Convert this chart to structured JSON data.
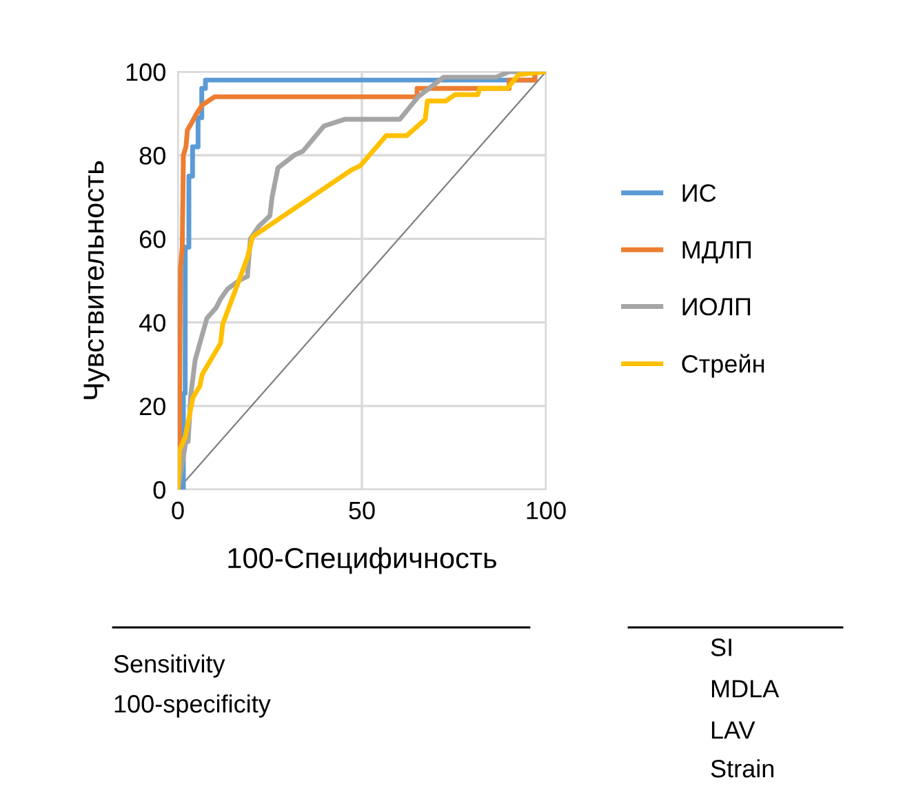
{
  "chart_data": {
    "type": "line",
    "xlabel": "100-Специфичность",
    "ylabel": "Чувствительность",
    "xlim": [
      0,
      100
    ],
    "ylim": [
      0,
      100
    ],
    "xticks": [
      0,
      50,
      100
    ],
    "yticks": [
      0,
      20,
      40,
      60,
      80,
      100
    ],
    "grid": true,
    "legend": "right",
    "marker": "none",
    "line_style": "solid",
    "series": [
      {
        "name": "ИС",
        "color": "#5b9bd5",
        "x": [
          0,
          1.5,
          1.5,
          2,
          2,
          3,
          3,
          4,
          4,
          5.5,
          5.5,
          6.5,
          6.5,
          7.5,
          7.5,
          97,
          97,
          100
        ],
        "values": [
          0,
          0,
          23,
          23,
          58,
          58,
          75,
          75,
          82,
          82,
          89,
          89,
          96,
          96,
          98,
          98,
          100,
          100
        ]
      },
      {
        "name": "МДЛП",
        "color": "#ed7d31",
        "x": [
          0,
          0.4,
          0.7,
          1.2,
          1.5,
          2.2,
          2.6,
          3.9,
          5.1,
          6.6,
          10,
          65,
          65,
          90,
          90,
          97,
          97,
          100
        ],
        "values": [
          0,
          10,
          53,
          58,
          80,
          82,
          86,
          88,
          90,
          92,
          94,
          94,
          96,
          96,
          98,
          98,
          100,
          100
        ]
      },
      {
        "name": "ИОЛП",
        "color": "#a5a5a5",
        "x": [
          0,
          2.2,
          2.8,
          3.5,
          4.7,
          7.9,
          10.4,
          11.6,
          13.5,
          16.6,
          18.9,
          19.7,
          22,
          25,
          25.6,
          27.2,
          31.6,
          34,
          39.7,
          45.3,
          60.3,
          65.3,
          72.2,
          86.5,
          90,
          100
        ],
        "values": [
          0,
          11.5,
          11.5,
          22.5,
          31,
          41,
          43.5,
          45.6,
          48,
          50,
          51,
          60,
          63,
          65.5,
          70,
          77,
          80,
          81,
          87,
          88.6,
          88.6,
          94,
          98.7,
          98.7,
          100,
          100
        ]
      },
      {
        "name": "Стрейн",
        "color": "#ffc000",
        "x": [
          0,
          0.4,
          2,
          4.1,
          6,
          6.6,
          11.6,
          12.2,
          16.6,
          18.9,
          20.3,
          47.2,
          49.6,
          56.6,
          62.2,
          67.2,
          67.8,
          72.8,
          75.3,
          81.5,
          82,
          89.5,
          92.6,
          100
        ],
        "values": [
          0,
          9.3,
          12.6,
          22,
          24.8,
          27.5,
          35,
          39.6,
          50,
          55.5,
          60.5,
          76.5,
          77.5,
          84.7,
          84.7,
          88.6,
          93,
          93,
          94.5,
          94.5,
          96,
          96,
          99.3,
          100
        ]
      },
      {
        "color": "#808080",
        "x": [
          0,
          100
        ],
        "values": [
          0,
          100
        ]
      }
    ],
    "annotations": [
      "Sensitivity",
      "100-specificity",
      "SI",
      "MDLA",
      "LAV",
      "Strain"
    ]
  }
}
